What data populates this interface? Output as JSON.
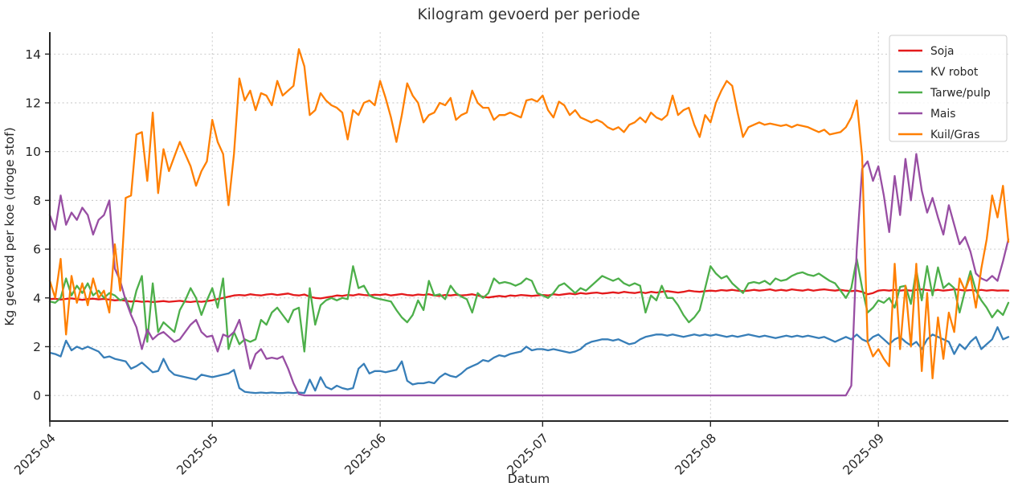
{
  "title": "Kilogram gevoerd per periode",
  "chart_data": {
    "type": "line",
    "title": "Kilogram gevoerd per periode",
    "xlabel": "Datum",
    "ylabel": "Kg gevoerd per koe (droge stof)",
    "x_tick_labels": [
      "2025-04",
      "2025-05",
      "2025-06",
      "2025-07",
      "2025-08",
      "2025-09"
    ],
    "x_tick_day_index": [
      0,
      30,
      61,
      91,
      122,
      153
    ],
    "n_points": 178,
    "x_range_note": "daily values 2025-04-01 through 2025-09-25",
    "yticks": [
      0,
      2,
      4,
      6,
      8,
      10,
      12,
      14
    ],
    "ylim": [
      -1.05,
      14.9
    ],
    "grid": true,
    "legend_position": "upper right",
    "series": [
      {
        "name": "Soja",
        "color": "#e41a1c",
        "values": [
          3.95,
          3.97,
          3.93,
          3.96,
          3.98,
          3.95,
          3.92,
          3.95,
          3.97,
          3.94,
          3.96,
          3.93,
          3.9,
          3.92,
          3.88,
          3.85,
          3.87,
          3.84,
          3.86,
          3.83,
          3.85,
          3.87,
          3.84,
          3.86,
          3.88,
          3.85,
          3.83,
          3.86,
          3.84,
          3.87,
          3.9,
          3.95,
          4.0,
          4.05,
          4.1,
          4.12,
          4.1,
          4.15,
          4.12,
          4.1,
          4.14,
          4.16,
          4.12,
          4.15,
          4.18,
          4.12,
          4.1,
          4.14,
          4.05,
          4.0,
          3.98,
          4.02,
          4.05,
          4.1,
          4.08,
          4.12,
          4.1,
          4.15,
          4.12,
          4.1,
          4.13,
          4.12,
          4.15,
          4.1,
          4.13,
          4.16,
          4.12,
          4.1,
          4.14,
          4.12,
          4.15,
          4.1,
          4.08,
          4.12,
          4.1,
          4.13,
          4.1,
          4.12,
          4.15,
          4.1,
          4.05,
          4.02,
          4.05,
          4.08,
          4.05,
          4.1,
          4.08,
          4.12,
          4.1,
          4.08,
          4.1,
          4.12,
          4.1,
          4.15,
          4.12,
          4.15,
          4.18,
          4.15,
          4.2,
          4.17,
          4.2,
          4.22,
          4.18,
          4.2,
          4.23,
          4.2,
          4.25,
          4.22,
          4.2,
          4.24,
          4.2,
          4.25,
          4.22,
          4.25,
          4.28,
          4.25,
          4.22,
          4.25,
          4.3,
          4.27,
          4.25,
          4.28,
          4.3,
          4.28,
          4.32,
          4.3,
          4.33,
          4.3,
          4.28,
          4.3,
          4.33,
          4.3,
          4.32,
          4.35,
          4.3,
          4.33,
          4.3,
          4.35,
          4.32,
          4.3,
          4.34,
          4.3,
          4.33,
          4.35,
          4.32,
          4.3,
          4.33,
          4.3,
          4.28,
          4.3,
          4.25,
          4.15,
          4.2,
          4.3,
          4.32,
          4.3,
          4.33,
          4.3,
          4.32,
          4.3,
          4.33,
          4.35,
          4.32,
          4.3,
          4.33,
          4.3,
          4.32,
          4.35,
          4.33,
          4.3,
          4.32,
          4.3,
          4.33,
          4.3,
          4.32,
          4.3,
          4.31,
          4.3
        ]
      },
      {
        "name": "KV robot",
        "color": "#377eb8",
        "values": [
          1.75,
          1.7,
          1.6,
          2.25,
          1.85,
          2.0,
          1.9,
          2.0,
          1.9,
          1.8,
          1.55,
          1.6,
          1.5,
          1.45,
          1.4,
          1.1,
          1.2,
          1.35,
          1.15,
          0.95,
          1.0,
          1.5,
          1.05,
          0.85,
          0.8,
          0.75,
          0.7,
          0.65,
          0.85,
          0.8,
          0.75,
          0.8,
          0.85,
          0.9,
          1.05,
          0.3,
          0.15,
          0.12,
          0.1,
          0.12,
          0.1,
          0.12,
          0.1,
          0.1,
          0.12,
          0.1,
          0.12,
          0.1,
          0.65,
          0.2,
          0.75,
          0.35,
          0.25,
          0.4,
          0.3,
          0.25,
          0.3,
          1.1,
          1.3,
          0.9,
          1.0,
          1.0,
          0.95,
          1.0,
          1.05,
          1.4,
          0.6,
          0.45,
          0.5,
          0.5,
          0.55,
          0.5,
          0.75,
          0.9,
          0.8,
          0.75,
          0.9,
          1.1,
          1.2,
          1.3,
          1.45,
          1.4,
          1.55,
          1.65,
          1.6,
          1.7,
          1.75,
          1.8,
          2.0,
          1.85,
          1.9,
          1.9,
          1.85,
          1.9,
          1.85,
          1.8,
          1.75,
          1.8,
          1.9,
          2.1,
          2.2,
          2.25,
          2.3,
          2.3,
          2.25,
          2.3,
          2.2,
          2.1,
          2.15,
          2.3,
          2.4,
          2.45,
          2.5,
          2.5,
          2.45,
          2.5,
          2.45,
          2.4,
          2.45,
          2.5,
          2.45,
          2.5,
          2.45,
          2.5,
          2.45,
          2.4,
          2.45,
          2.4,
          2.45,
          2.5,
          2.45,
          2.4,
          2.45,
          2.4,
          2.35,
          2.4,
          2.45,
          2.4,
          2.45,
          2.4,
          2.45,
          2.4,
          2.35,
          2.4,
          2.3,
          2.2,
          2.3,
          2.4,
          2.3,
          2.5,
          2.3,
          2.2,
          2.4,
          2.5,
          2.3,
          2.1,
          2.3,
          2.4,
          2.2,
          2.05,
          2.2,
          1.9,
          2.3,
          2.5,
          2.4,
          2.3,
          2.2,
          1.7,
          2.1,
          1.9,
          2.2,
          2.4,
          1.9,
          2.1,
          2.3,
          2.8,
          2.3,
          2.4
        ]
      },
      {
        "name": "Tarwe/pulp",
        "color": "#4daf4a",
        "values": [
          3.85,
          3.8,
          4.0,
          4.8,
          4.1,
          4.5,
          4.2,
          4.6,
          4.1,
          4.3,
          4.0,
          4.2,
          4.1,
          3.9,
          4.0,
          3.4,
          4.3,
          4.9,
          2.2,
          4.6,
          2.6,
          3.0,
          2.8,
          2.6,
          3.5,
          3.9,
          4.4,
          4.0,
          3.3,
          3.9,
          4.4,
          3.6,
          4.8,
          1.9,
          2.6,
          2.1,
          2.3,
          2.2,
          2.3,
          3.1,
          2.9,
          3.4,
          3.6,
          3.3,
          3.0,
          3.5,
          3.6,
          1.8,
          4.4,
          2.9,
          3.7,
          3.9,
          4.0,
          3.9,
          4.0,
          3.95,
          5.3,
          4.4,
          4.5,
          4.1,
          4.0,
          3.95,
          3.9,
          3.85,
          3.5,
          3.2,
          3.0,
          3.3,
          3.9,
          3.5,
          4.7,
          4.1,
          4.15,
          3.95,
          4.5,
          4.2,
          4.05,
          3.95,
          3.4,
          4.2,
          4.0,
          4.2,
          4.8,
          4.6,
          4.65,
          4.6,
          4.5,
          4.6,
          4.8,
          4.7,
          4.2,
          4.1,
          4.0,
          4.2,
          4.5,
          4.6,
          4.4,
          4.2,
          4.4,
          4.3,
          4.5,
          4.7,
          4.9,
          4.8,
          4.7,
          4.8,
          4.6,
          4.5,
          4.6,
          4.5,
          3.4,
          4.1,
          3.9,
          4.5,
          4.0,
          4.0,
          3.7,
          3.3,
          3.0,
          3.2,
          3.5,
          4.4,
          5.3,
          5.0,
          4.8,
          4.9,
          4.6,
          4.4,
          4.2,
          4.6,
          4.65,
          4.6,
          4.7,
          4.55,
          4.8,
          4.7,
          4.75,
          4.9,
          5.0,
          5.05,
          4.95,
          4.9,
          5.0,
          4.85,
          4.7,
          4.6,
          4.3,
          4.0,
          4.4,
          5.6,
          4.4,
          3.4,
          3.6,
          3.9,
          3.8,
          4.0,
          3.6,
          4.45,
          4.5,
          3.75,
          5.15,
          3.9,
          5.3,
          4.1,
          5.25,
          4.4,
          4.6,
          4.4,
          3.4,
          4.3,
          5.1,
          4.3,
          3.9,
          3.6,
          3.2,
          3.5,
          3.3,
          3.8
        ]
      },
      {
        "name": "Mais",
        "color": "#984ea3",
        "values": [
          7.4,
          6.8,
          8.2,
          7.0,
          7.5,
          7.2,
          7.7,
          7.4,
          6.6,
          7.2,
          7.4,
          8.0,
          5.2,
          4.7,
          3.9,
          3.3,
          2.8,
          1.9,
          2.7,
          2.3,
          2.5,
          2.6,
          2.4,
          2.2,
          2.3,
          2.6,
          2.9,
          3.1,
          2.6,
          2.4,
          2.45,
          1.8,
          2.5,
          2.4,
          2.6,
          3.1,
          2.2,
          1.1,
          1.7,
          1.9,
          1.5,
          1.55,
          1.5,
          1.6,
          1.1,
          0.5,
          0.05,
          0,
          0,
          0,
          0,
          0,
          0,
          0,
          0,
          0,
          0,
          0,
          0,
          0,
          0,
          0,
          0,
          0,
          0,
          0,
          0,
          0,
          0,
          0,
          0,
          0,
          0,
          0,
          0,
          0,
          0,
          0,
          0,
          0,
          0,
          0,
          0,
          0,
          0,
          0,
          0,
          0,
          0,
          0,
          0,
          0,
          0,
          0,
          0,
          0,
          0,
          0,
          0,
          0,
          0,
          0,
          0,
          0,
          0,
          0,
          0,
          0,
          0,
          0,
          0,
          0,
          0,
          0,
          0,
          0,
          0,
          0,
          0,
          0,
          0,
          0,
          0,
          0,
          0,
          0,
          0,
          0,
          0,
          0,
          0,
          0,
          0,
          0,
          0,
          0,
          0,
          0,
          0,
          0,
          0,
          0,
          0,
          0,
          0,
          0,
          0,
          0,
          0.4,
          6.0,
          9.3,
          9.6,
          8.8,
          9.4,
          8.2,
          6.7,
          9.0,
          7.4,
          9.7,
          8.0,
          9.9,
          8.4,
          7.5,
          8.1,
          7.3,
          6.6,
          7.8,
          7.0,
          6.2,
          6.5,
          5.9,
          5.0,
          4.8,
          4.7,
          4.9,
          4.7,
          5.5,
          6.4
        ]
      },
      {
        "name": "Kuil/Gras",
        "color": "#ff7f00",
        "values": [
          4.7,
          4.0,
          5.6,
          2.5,
          4.9,
          3.8,
          4.6,
          3.7,
          4.8,
          4.0,
          4.3,
          3.4,
          6.2,
          4.3,
          8.1,
          8.2,
          10.7,
          10.8,
          8.8,
          11.6,
          8.3,
          10.1,
          9.2,
          9.8,
          10.4,
          9.9,
          9.4,
          8.6,
          9.2,
          9.6,
          11.3,
          10.4,
          9.9,
          7.8,
          9.9,
          13.0,
          12.1,
          12.5,
          11.7,
          12.4,
          12.3,
          11.9,
          12.9,
          12.3,
          12.5,
          12.7,
          14.2,
          13.5,
          11.5,
          11.7,
          12.4,
          12.1,
          11.9,
          11.8,
          11.6,
          10.5,
          11.7,
          11.5,
          12.0,
          12.1,
          11.9,
          12.9,
          12.2,
          11.4,
          10.4,
          11.5,
          12.8,
          12.3,
          12.0,
          11.2,
          11.5,
          11.6,
          12.0,
          11.9,
          12.2,
          11.3,
          11.5,
          11.6,
          12.5,
          12.0,
          11.8,
          11.8,
          11.3,
          11.5,
          11.5,
          11.6,
          11.5,
          11.4,
          12.1,
          12.15,
          12.05,
          12.3,
          11.7,
          11.4,
          12.05,
          11.9,
          11.5,
          11.7,
          11.4,
          11.3,
          11.2,
          11.3,
          11.2,
          11.0,
          10.9,
          11.0,
          10.8,
          11.1,
          11.2,
          11.4,
          11.2,
          11.6,
          11.4,
          11.3,
          11.5,
          12.3,
          11.5,
          11.7,
          11.8,
          11.1,
          10.6,
          11.5,
          11.2,
          12.0,
          12.5,
          12.9,
          12.7,
          11.6,
          10.6,
          11.0,
          11.1,
          11.2,
          11.1,
          11.15,
          11.1,
          11.05,
          11.1,
          11.0,
          11.1,
          11.05,
          11.0,
          10.9,
          10.8,
          10.9,
          10.7,
          10.75,
          10.8,
          11.0,
          11.4,
          12.1,
          9.8,
          2.2,
          1.6,
          1.9,
          1.5,
          1.2,
          5.4,
          1.9,
          4.5,
          2.0,
          5.4,
          1.0,
          4.2,
          0.7,
          3.2,
          1.5,
          3.4,
          2.6,
          4.8,
          4.3,
          4.9,
          3.6,
          5.2,
          6.4,
          8.2,
          7.3,
          8.6,
          6.3
        ]
      }
    ]
  }
}
